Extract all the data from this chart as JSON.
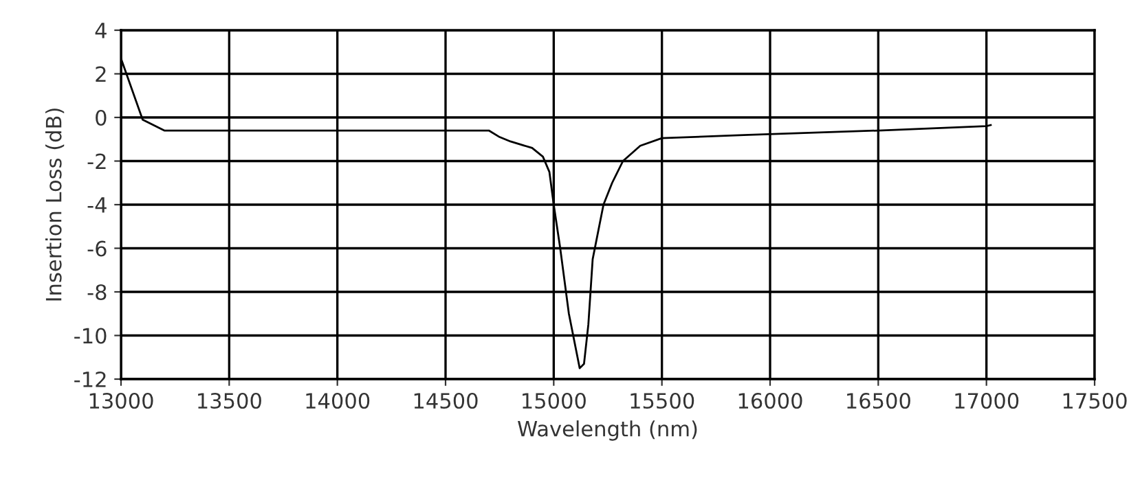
{
  "chart_data": {
    "type": "line",
    "xlabel": "Wavelength (nm)",
    "ylabel": "Insertion Loss (dB)",
    "series": [
      {
        "color": "#000000",
        "x": [
          13000,
          13100,
          13200,
          14700,
          14750,
          14800,
          14900,
          14950,
          14980,
          15000,
          15030,
          15070,
          15100,
          15120,
          15140,
          15160,
          15180,
          15230,
          15270,
          15320,
          15400,
          15500,
          15900,
          16500,
          17000,
          17020
        ],
        "values": [
          2.7,
          -0.1,
          -0.6,
          -0.6,
          -0.9,
          -1.1,
          -1.4,
          -1.8,
          -2.5,
          -4.0,
          -6.0,
          -9.0,
          -10.5,
          -11.5,
          -11.3,
          -9.5,
          -6.5,
          -4.0,
          -3.0,
          -2.0,
          -1.3,
          -0.95,
          -0.8,
          -0.6,
          -0.4,
          -0.35
        ]
      }
    ],
    "xlim": [
      13000,
      17500
    ],
    "xticks": [
      13000,
      13500,
      14000,
      14500,
      15000,
      15500,
      16000,
      16500,
      17000,
      17500
    ],
    "ylim": [
      -12,
      4
    ],
    "yticks": [
      -12,
      -10,
      -8,
      -6,
      -4,
      -2,
      0,
      2,
      4
    ],
    "grid": true,
    "marker": "none",
    "line_style": "solid"
  }
}
